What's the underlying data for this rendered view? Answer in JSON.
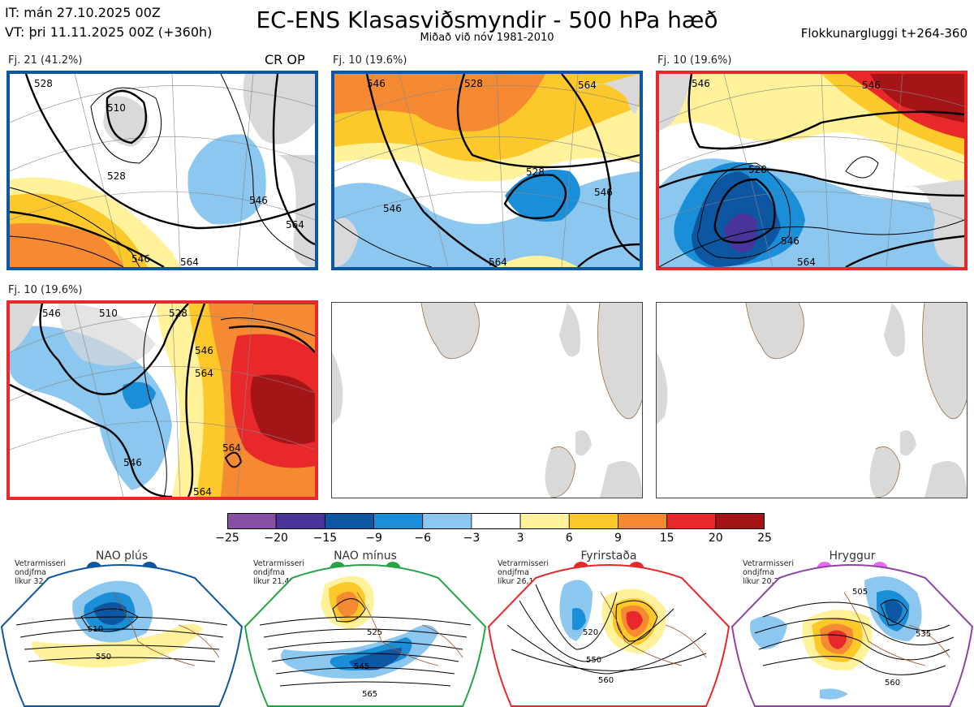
{
  "header": {
    "it_line": "IT: mán 27.10.2025 00Z",
    "vt_line": "VT: þri 11.11.2025 00Z  (+360h)",
    "title": "EC-ENS Klasasviðsmyndir - 500 hPa hæð",
    "subtitle": "Miðað við nóv 1981-2010",
    "window": "Flokkunargluggi t+264-360"
  },
  "panels": [
    {
      "label": "Fj. 21 (41.2%)",
      "tag": "CR OP",
      "border": "#0d57a2",
      "contours": [
        "528",
        "510",
        "528",
        "546",
        "546",
        "564",
        "564"
      ]
    },
    {
      "label": "Fj. 10 (19.6%)",
      "tag": "",
      "border": "#0d57a2",
      "contours": [
        "546",
        "528",
        "528",
        "546",
        "564",
        "546",
        "564"
      ]
    },
    {
      "label": "Fj. 10 (19.6%)",
      "tag": "",
      "border": "#e8282b",
      "contours": [
        "546",
        "528",
        "546",
        "546",
        "564"
      ]
    },
    {
      "label": "Fj. 10 (19.6%)",
      "tag": "",
      "border": "#e8282b",
      "contours": [
        "546",
        "510",
        "528",
        "546",
        "564",
        "546",
        "564",
        "564"
      ]
    }
  ],
  "colorbar": {
    "labels": [
      "−25",
      "−20",
      "−15",
      "−9",
      "−6",
      "−3",
      "3",
      "6",
      "9",
      "15",
      "20",
      "25"
    ],
    "colors": [
      "#874ea3",
      "#4a3399",
      "#0d57a2",
      "#1a8fd8",
      "#8bc7ee",
      "#ffffff",
      "#fff29a",
      "#fdc82a",
      "#f58a33",
      "#e8282b",
      "#a51416"
    ]
  },
  "regimes": [
    {
      "name": "NAO plús",
      "season": "Vetrarmisseri",
      "mean": "ondjfma",
      "prob": "líkur 32,3%",
      "color": "#0d57a2",
      "contours": [
        "510",
        "550"
      ]
    },
    {
      "name": "NAO mínus",
      "season": "Vetrarmisseri",
      "mean": "ondjfma",
      "prob": "líkur 21,4%",
      "color": "#25a447",
      "contours": [
        "525",
        "545",
        "565"
      ]
    },
    {
      "name": "Fyrirstaða",
      "season": "Vetrarmisseri",
      "mean": "ondjfma",
      "prob": "líkur 26,1%",
      "color": "#e8282b",
      "contours": [
        "520",
        "550",
        "560"
      ]
    },
    {
      "name": "Hryggur",
      "season": "Vetrarmisseri",
      "mean": "ondjfma",
      "prob": "líkur 20,2%",
      "color": "#e46cf0",
      "contours": [
        "505",
        "535",
        "560"
      ]
    }
  ]
}
